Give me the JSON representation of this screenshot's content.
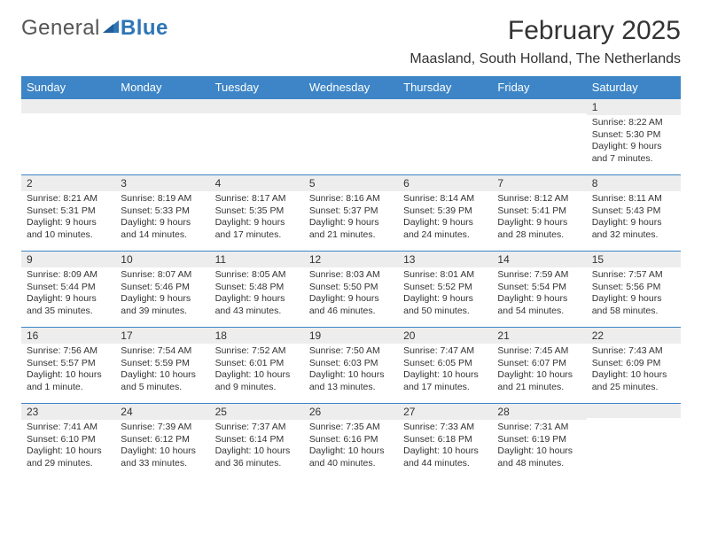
{
  "brand": {
    "general": "General",
    "blue": "Blue"
  },
  "colors": {
    "header_bg": "#3d85c6",
    "header_text": "#ffffff",
    "daynum_bg": "#ededed",
    "rule": "#3d85c6",
    "text": "#333333",
    "logo_blue": "#2e75b6",
    "logo_grey": "#555555",
    "background": "#ffffff"
  },
  "typography": {
    "title_fontsize": 30,
    "location_fontsize": 16,
    "weekday_fontsize": 13,
    "daynum_fontsize": 12,
    "body_fontsize": 10.5,
    "font_family": "Arial"
  },
  "title": "February 2025",
  "location": "Maasland, South Holland, The Netherlands",
  "weekdays": [
    "Sunday",
    "Monday",
    "Tuesday",
    "Wednesday",
    "Thursday",
    "Friday",
    "Saturday"
  ],
  "grid": [
    [
      {
        "num": "",
        "sunrise": "",
        "sunset": "",
        "daylight": ""
      },
      {
        "num": "",
        "sunrise": "",
        "sunset": "",
        "daylight": ""
      },
      {
        "num": "",
        "sunrise": "",
        "sunset": "",
        "daylight": ""
      },
      {
        "num": "",
        "sunrise": "",
        "sunset": "",
        "daylight": ""
      },
      {
        "num": "",
        "sunrise": "",
        "sunset": "",
        "daylight": ""
      },
      {
        "num": "",
        "sunrise": "",
        "sunset": "",
        "daylight": ""
      },
      {
        "num": "1",
        "sunrise": "Sunrise: 8:22 AM",
        "sunset": "Sunset: 5:30 PM",
        "daylight": "Daylight: 9 hours and 7 minutes."
      }
    ],
    [
      {
        "num": "2",
        "sunrise": "Sunrise: 8:21 AM",
        "sunset": "Sunset: 5:31 PM",
        "daylight": "Daylight: 9 hours and 10 minutes."
      },
      {
        "num": "3",
        "sunrise": "Sunrise: 8:19 AM",
        "sunset": "Sunset: 5:33 PM",
        "daylight": "Daylight: 9 hours and 14 minutes."
      },
      {
        "num": "4",
        "sunrise": "Sunrise: 8:17 AM",
        "sunset": "Sunset: 5:35 PM",
        "daylight": "Daylight: 9 hours and 17 minutes."
      },
      {
        "num": "5",
        "sunrise": "Sunrise: 8:16 AM",
        "sunset": "Sunset: 5:37 PM",
        "daylight": "Daylight: 9 hours and 21 minutes."
      },
      {
        "num": "6",
        "sunrise": "Sunrise: 8:14 AM",
        "sunset": "Sunset: 5:39 PM",
        "daylight": "Daylight: 9 hours and 24 minutes."
      },
      {
        "num": "7",
        "sunrise": "Sunrise: 8:12 AM",
        "sunset": "Sunset: 5:41 PM",
        "daylight": "Daylight: 9 hours and 28 minutes."
      },
      {
        "num": "8",
        "sunrise": "Sunrise: 8:11 AM",
        "sunset": "Sunset: 5:43 PM",
        "daylight": "Daylight: 9 hours and 32 minutes."
      }
    ],
    [
      {
        "num": "9",
        "sunrise": "Sunrise: 8:09 AM",
        "sunset": "Sunset: 5:44 PM",
        "daylight": "Daylight: 9 hours and 35 minutes."
      },
      {
        "num": "10",
        "sunrise": "Sunrise: 8:07 AM",
        "sunset": "Sunset: 5:46 PM",
        "daylight": "Daylight: 9 hours and 39 minutes."
      },
      {
        "num": "11",
        "sunrise": "Sunrise: 8:05 AM",
        "sunset": "Sunset: 5:48 PM",
        "daylight": "Daylight: 9 hours and 43 minutes."
      },
      {
        "num": "12",
        "sunrise": "Sunrise: 8:03 AM",
        "sunset": "Sunset: 5:50 PM",
        "daylight": "Daylight: 9 hours and 46 minutes."
      },
      {
        "num": "13",
        "sunrise": "Sunrise: 8:01 AM",
        "sunset": "Sunset: 5:52 PM",
        "daylight": "Daylight: 9 hours and 50 minutes."
      },
      {
        "num": "14",
        "sunrise": "Sunrise: 7:59 AM",
        "sunset": "Sunset: 5:54 PM",
        "daylight": "Daylight: 9 hours and 54 minutes."
      },
      {
        "num": "15",
        "sunrise": "Sunrise: 7:57 AM",
        "sunset": "Sunset: 5:56 PM",
        "daylight": "Daylight: 9 hours and 58 minutes."
      }
    ],
    [
      {
        "num": "16",
        "sunrise": "Sunrise: 7:56 AM",
        "sunset": "Sunset: 5:57 PM",
        "daylight": "Daylight: 10 hours and 1 minute."
      },
      {
        "num": "17",
        "sunrise": "Sunrise: 7:54 AM",
        "sunset": "Sunset: 5:59 PM",
        "daylight": "Daylight: 10 hours and 5 minutes."
      },
      {
        "num": "18",
        "sunrise": "Sunrise: 7:52 AM",
        "sunset": "Sunset: 6:01 PM",
        "daylight": "Daylight: 10 hours and 9 minutes."
      },
      {
        "num": "19",
        "sunrise": "Sunrise: 7:50 AM",
        "sunset": "Sunset: 6:03 PM",
        "daylight": "Daylight: 10 hours and 13 minutes."
      },
      {
        "num": "20",
        "sunrise": "Sunrise: 7:47 AM",
        "sunset": "Sunset: 6:05 PM",
        "daylight": "Daylight: 10 hours and 17 minutes."
      },
      {
        "num": "21",
        "sunrise": "Sunrise: 7:45 AM",
        "sunset": "Sunset: 6:07 PM",
        "daylight": "Daylight: 10 hours and 21 minutes."
      },
      {
        "num": "22",
        "sunrise": "Sunrise: 7:43 AM",
        "sunset": "Sunset: 6:09 PM",
        "daylight": "Daylight: 10 hours and 25 minutes."
      }
    ],
    [
      {
        "num": "23",
        "sunrise": "Sunrise: 7:41 AM",
        "sunset": "Sunset: 6:10 PM",
        "daylight": "Daylight: 10 hours and 29 minutes."
      },
      {
        "num": "24",
        "sunrise": "Sunrise: 7:39 AM",
        "sunset": "Sunset: 6:12 PM",
        "daylight": "Daylight: 10 hours and 33 minutes."
      },
      {
        "num": "25",
        "sunrise": "Sunrise: 7:37 AM",
        "sunset": "Sunset: 6:14 PM",
        "daylight": "Daylight: 10 hours and 36 minutes."
      },
      {
        "num": "26",
        "sunrise": "Sunrise: 7:35 AM",
        "sunset": "Sunset: 6:16 PM",
        "daylight": "Daylight: 10 hours and 40 minutes."
      },
      {
        "num": "27",
        "sunrise": "Sunrise: 7:33 AM",
        "sunset": "Sunset: 6:18 PM",
        "daylight": "Daylight: 10 hours and 44 minutes."
      },
      {
        "num": "28",
        "sunrise": "Sunrise: 7:31 AM",
        "sunset": "Sunset: 6:19 PM",
        "daylight": "Daylight: 10 hours and 48 minutes."
      },
      {
        "num": "",
        "sunrise": "",
        "sunset": "",
        "daylight": ""
      }
    ]
  ]
}
